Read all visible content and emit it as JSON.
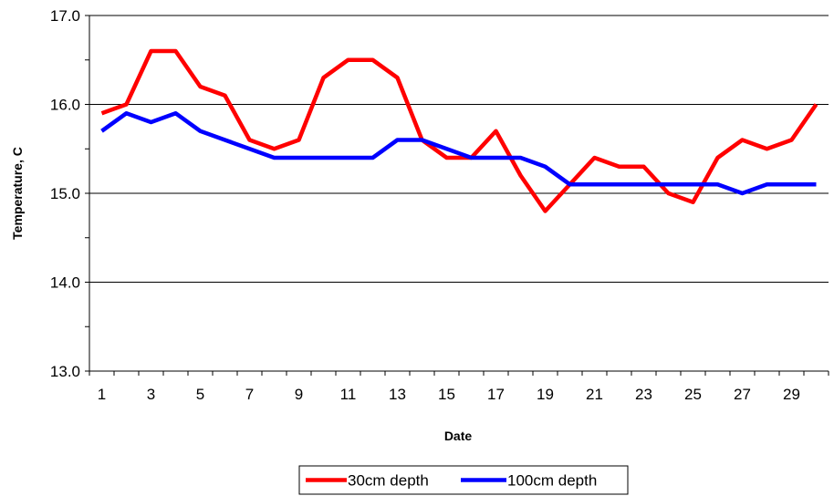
{
  "chart_data": {
    "type": "line",
    "title": "",
    "xlabel": "Date",
    "ylabel": "Temperature, C",
    "ylim": [
      13.0,
      17.0
    ],
    "y_ticks": [
      "13.0",
      "14.0",
      "15.0",
      "16.0",
      "17.0"
    ],
    "x_tick_labels": [
      "1",
      "3",
      "5",
      "7",
      "9",
      "11",
      "13",
      "15",
      "17",
      "19",
      "21",
      "23",
      "25",
      "27",
      "29"
    ],
    "x": [
      1,
      2,
      3,
      4,
      5,
      6,
      7,
      8,
      9,
      10,
      11,
      12,
      13,
      14,
      15,
      16,
      17,
      18,
      19,
      20,
      21,
      22,
      23,
      24,
      25,
      26,
      27,
      28,
      29,
      30
    ],
    "grid": "horizontal",
    "legend_position": "bottom",
    "series": [
      {
        "name": "30cm depth",
        "color": "#ff0000",
        "values": [
          15.9,
          16.0,
          16.6,
          16.6,
          16.2,
          16.1,
          15.6,
          15.5,
          15.6,
          16.3,
          16.5,
          16.5,
          16.3,
          15.6,
          15.4,
          15.4,
          15.7,
          15.2,
          14.8,
          15.1,
          15.4,
          15.3,
          15.3,
          15.0,
          14.9,
          15.4,
          15.6,
          15.5,
          15.6,
          16.0
        ]
      },
      {
        "name": "100cm depth",
        "color": "#0000ff",
        "values": [
          15.7,
          15.9,
          15.8,
          15.9,
          15.7,
          15.6,
          15.5,
          15.4,
          15.4,
          15.4,
          15.4,
          15.4,
          15.6,
          15.6,
          15.5,
          15.4,
          15.4,
          15.4,
          15.3,
          15.1,
          15.1,
          15.1,
          15.1,
          15.1,
          15.1,
          15.1,
          15.0,
          15.1,
          15.1,
          15.1
        ]
      }
    ]
  }
}
